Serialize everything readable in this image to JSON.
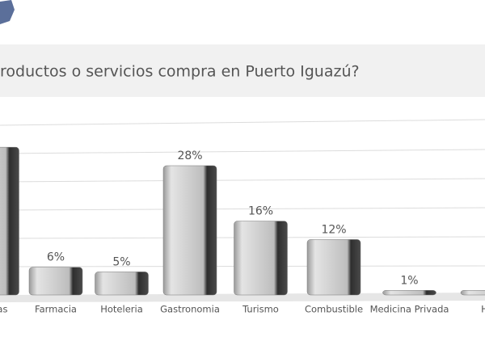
{
  "chart_data": {
    "type": "bar",
    "title": "roductos o servicios compra en Puerto Iguazú?",
    "categories": [
      "ebidas",
      "Farmacia",
      "Hoteleria",
      "Gastronomia",
      "Turismo",
      "Combustible",
      "Medicina Privada",
      "Ho"
    ],
    "values": [
      32,
      6,
      5,
      28,
      16,
      12,
      1,
      1
    ],
    "value_labels": [
      null,
      "6%",
      "5%",
      "28%",
      "16%",
      "12%",
      "1%",
      null
    ],
    "color": "#c8c8c8",
    "ylim": [
      0,
      35
    ]
  }
}
